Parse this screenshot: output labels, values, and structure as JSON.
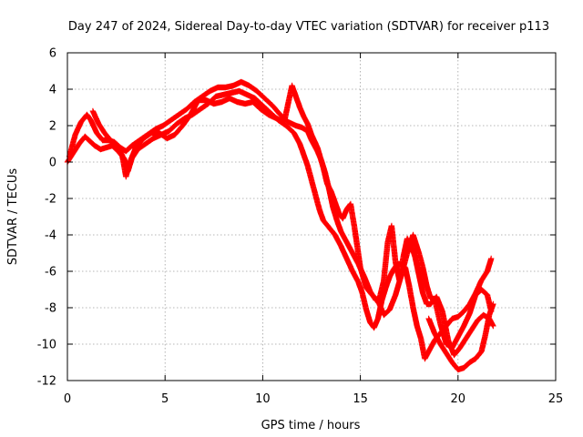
{
  "chart_data": {
    "type": "scatter",
    "title": "Day 247 of 2024, Sidereal Day-to-day VTEC variation (SDTVAR) for receiver p113",
    "xlabel": "GPS time / hours",
    "ylabel": "SDTVAR / TECUs",
    "xlim": [
      0,
      25
    ],
    "ylim": [
      -12,
      6
    ],
    "xticks": [
      0,
      5,
      10,
      15,
      20,
      25
    ],
    "yticks": [
      -12,
      -10,
      -8,
      -6,
      -4,
      -2,
      0,
      2,
      4,
      6
    ],
    "grid": true,
    "marker": "+",
    "color": "#ff0000",
    "series": [
      {
        "points": [
          [
            0,
            0
          ],
          [
            0.3,
            0.5
          ],
          [
            0.6,
            1.0
          ],
          [
            0.9,
            1.4
          ],
          [
            1.1,
            1.2
          ],
          [
            1.4,
            0.9
          ],
          [
            1.7,
            0.7
          ],
          [
            2.0,
            0.8
          ],
          [
            2.3,
            0.9
          ],
          [
            2.6,
            0.6
          ],
          [
            2.9,
            0.2
          ],
          [
            3.1,
            -0.5
          ],
          [
            3.3,
            0.2
          ],
          [
            3.6,
            0.7
          ],
          [
            4.0,
            1.0
          ],
          [
            4.4,
            1.3
          ],
          [
            4.8,
            1.5
          ],
          [
            5.2,
            1.7
          ],
          [
            5.6,
            2.1
          ],
          [
            6.0,
            2.4
          ],
          [
            6.4,
            2.6
          ],
          [
            6.8,
            2.9
          ],
          [
            7.2,
            3.2
          ],
          [
            7.6,
            3.6
          ],
          [
            8.0,
            3.7
          ],
          [
            8.4,
            3.8
          ],
          [
            8.8,
            3.9
          ],
          [
            9.2,
            3.7
          ],
          [
            9.6,
            3.5
          ],
          [
            10.0,
            3.1
          ],
          [
            10.4,
            2.7
          ],
          [
            10.8,
            2.3
          ],
          [
            11.2,
            2.0
          ],
          [
            11.6,
            1.6
          ],
          [
            11.9,
            1.0
          ],
          [
            12.1,
            0.4
          ],
          [
            12.3,
            -0.2
          ],
          [
            12.5,
            -1.0
          ],
          [
            12.7,
            -1.8
          ],
          [
            12.9,
            -2.6
          ],
          [
            13.1,
            -3.2
          ],
          [
            13.4,
            -3.6
          ],
          [
            13.7,
            -4.0
          ],
          [
            14.0,
            -4.6
          ],
          [
            14.3,
            -5.3
          ],
          [
            14.6,
            -6.0
          ],
          [
            14.9,
            -6.6
          ],
          [
            15.1,
            -7.2
          ],
          [
            15.3,
            -8.1
          ],
          [
            15.5,
            -8.8
          ],
          [
            15.7,
            -9.1
          ],
          [
            15.9,
            -8.6
          ],
          [
            16.1,
            -7.6
          ],
          [
            16.3,
            -6.9
          ],
          [
            16.5,
            -6.3
          ],
          [
            16.7,
            -5.9
          ],
          [
            16.9,
            -5.6
          ],
          [
            17.1,
            -5.6
          ],
          [
            17.3,
            -5.8
          ],
          [
            17.5,
            -6.8
          ],
          [
            17.7,
            -8.0
          ],
          [
            17.9,
            -9.0
          ],
          [
            18.1,
            -9.7
          ],
          [
            18.3,
            -10.8
          ],
          [
            18.5,
            -10.4
          ],
          [
            18.8,
            -9.8
          ],
          [
            19.1,
            -9.4
          ],
          [
            19.4,
            -9.0
          ],
          [
            19.7,
            -8.6
          ],
          [
            20.0,
            -8.5
          ],
          [
            20.3,
            -8.2
          ],
          [
            20.6,
            -7.8
          ],
          [
            20.9,
            -7.2
          ],
          [
            21.2,
            -6.5
          ],
          [
            21.5,
            -6.0
          ],
          [
            21.7,
            -5.3
          ]
        ]
      },
      {
        "points": [
          [
            0.1,
            0.3
          ],
          [
            0.4,
            1.5
          ],
          [
            0.7,
            2.2
          ],
          [
            1.0,
            2.6
          ],
          [
            1.2,
            2.3
          ],
          [
            1.5,
            1.6
          ],
          [
            1.8,
            1.2
          ],
          [
            2.1,
            1.2
          ],
          [
            2.4,
            1.1
          ],
          [
            2.7,
            0.8
          ],
          [
            3.0,
            0.6
          ],
          [
            3.3,
            0.9
          ],
          [
            3.7,
            1.2
          ],
          [
            4.1,
            1.5
          ],
          [
            4.5,
            1.8
          ],
          [
            4.9,
            2.0
          ],
          [
            5.3,
            2.3
          ],
          [
            5.7,
            2.6
          ],
          [
            6.1,
            2.9
          ],
          [
            6.5,
            3.3
          ],
          [
            6.9,
            3.6
          ],
          [
            7.3,
            3.9
          ],
          [
            7.7,
            4.1
          ],
          [
            8.1,
            4.1
          ],
          [
            8.5,
            4.2
          ],
          [
            8.9,
            4.4
          ],
          [
            9.3,
            4.2
          ],
          [
            9.7,
            3.9
          ],
          [
            10.1,
            3.5
          ],
          [
            10.5,
            3.1
          ],
          [
            10.9,
            2.6
          ],
          [
            11.3,
            2.2
          ],
          [
            11.7,
            2.0
          ],
          [
            12.0,
            1.9
          ],
          [
            12.3,
            1.7
          ],
          [
            12.5,
            1.2
          ],
          [
            12.8,
            0.6
          ],
          [
            13.0,
            0.1
          ],
          [
            13.2,
            -0.6
          ],
          [
            13.4,
            -1.5
          ],
          [
            13.6,
            -2.5
          ],
          [
            13.8,
            -3.2
          ],
          [
            14.0,
            -3.8
          ],
          [
            14.3,
            -4.4
          ],
          [
            14.6,
            -5.0
          ],
          [
            14.9,
            -5.6
          ],
          [
            15.2,
            -6.3
          ],
          [
            15.5,
            -7.1
          ],
          [
            15.8,
            -7.6
          ],
          [
            16.0,
            -7.4
          ],
          [
            16.2,
            -6.5
          ],
          [
            16.4,
            -4.4
          ],
          [
            16.6,
            -3.5
          ],
          [
            16.8,
            -5.5
          ],
          [
            17.0,
            -6.5
          ],
          [
            17.2,
            -5.2
          ],
          [
            17.4,
            -4.2
          ],
          [
            17.6,
            -4.6
          ],
          [
            17.8,
            -5.2
          ],
          [
            18.0,
            -6.2
          ],
          [
            18.2,
            -7.2
          ],
          [
            18.4,
            -7.8
          ],
          [
            18.6,
            -7.8
          ],
          [
            18.9,
            -7.4
          ],
          [
            19.2,
            -8.2
          ],
          [
            19.5,
            -9.8
          ],
          [
            19.8,
            -10.6
          ],
          [
            20.1,
            -10.2
          ],
          [
            20.4,
            -9.7
          ],
          [
            20.7,
            -9.2
          ],
          [
            21.0,
            -8.7
          ],
          [
            21.3,
            -8.4
          ],
          [
            21.6,
            -8.6
          ],
          [
            21.8,
            -9.0
          ]
        ]
      },
      {
        "points": [
          [
            1.3,
            2.8
          ],
          [
            1.6,
            2.1
          ],
          [
            1.9,
            1.6
          ],
          [
            2.2,
            1.2
          ],
          [
            2.5,
            0.9
          ],
          [
            2.8,
            0.4
          ],
          [
            3.0,
            -0.8
          ],
          [
            3.2,
            0.0
          ],
          [
            3.5,
            0.8
          ],
          [
            3.9,
            1.3
          ],
          [
            4.3,
            1.6
          ],
          [
            4.7,
            1.6
          ],
          [
            5.1,
            1.3
          ],
          [
            5.5,
            1.5
          ],
          [
            5.9,
            2.0
          ],
          [
            6.3,
            2.6
          ],
          [
            6.7,
            3.4
          ],
          [
            7.1,
            3.4
          ],
          [
            7.5,
            3.2
          ],
          [
            7.9,
            3.3
          ],
          [
            8.3,
            3.5
          ],
          [
            8.7,
            3.3
          ],
          [
            9.1,
            3.2
          ],
          [
            9.5,
            3.3
          ],
          [
            9.9,
            2.9
          ],
          [
            10.3,
            2.6
          ],
          [
            10.7,
            2.4
          ],
          [
            11.1,
            2.2
          ],
          [
            11.5,
            4.2
          ],
          [
            11.7,
            3.6
          ],
          [
            11.9,
            3.0
          ],
          [
            12.1,
            2.5
          ],
          [
            12.3,
            2.1
          ],
          [
            12.5,
            1.5
          ],
          [
            12.8,
            0.8
          ],
          [
            13.1,
            -0.3
          ],
          [
            13.3,
            -1.2
          ],
          [
            13.5,
            -1.6
          ],
          [
            13.7,
            -2.2
          ],
          [
            13.9,
            -2.8
          ],
          [
            14.1,
            -3.1
          ],
          [
            14.3,
            -2.6
          ],
          [
            14.5,
            -2.3
          ],
          [
            14.7,
            -3.6
          ],
          [
            15.0,
            -5.8
          ],
          [
            15.3,
            -6.9
          ],
          [
            15.6,
            -7.3
          ],
          [
            15.9,
            -7.6
          ],
          [
            16.2,
            -8.4
          ],
          [
            16.5,
            -8.1
          ],
          [
            16.8,
            -7.3
          ],
          [
            17.1,
            -6.2
          ],
          [
            17.4,
            -5.0
          ],
          [
            17.7,
            -4.0
          ],
          [
            18.0,
            -5.0
          ],
          [
            18.2,
            -5.8
          ],
          [
            18.4,
            -6.8
          ],
          [
            18.6,
            -7.5
          ],
          [
            18.8,
            -7.5
          ],
          [
            19.1,
            -8.9
          ],
          [
            19.4,
            -10.0
          ],
          [
            19.7,
            -10.2
          ],
          [
            20.0,
            -9.6
          ],
          [
            20.3,
            -9.0
          ],
          [
            20.6,
            -8.3
          ],
          [
            20.9,
            -7.3
          ],
          [
            21.2,
            -7.0
          ],
          [
            21.5,
            -7.3
          ],
          [
            21.7,
            -8.2
          ]
        ]
      },
      {
        "points": [
          [
            18.5,
            -8.6
          ],
          [
            18.8,
            -9.4
          ],
          [
            19.1,
            -10.0
          ],
          [
            19.4,
            -10.5
          ],
          [
            19.7,
            -11.0
          ],
          [
            20.0,
            -11.4
          ],
          [
            20.3,
            -11.3
          ],
          [
            20.6,
            -11.0
          ],
          [
            20.9,
            -10.8
          ],
          [
            21.2,
            -10.4
          ],
          [
            21.4,
            -9.5
          ],
          [
            21.6,
            -8.4
          ],
          [
            21.8,
            -7.8
          ]
        ]
      }
    ]
  }
}
